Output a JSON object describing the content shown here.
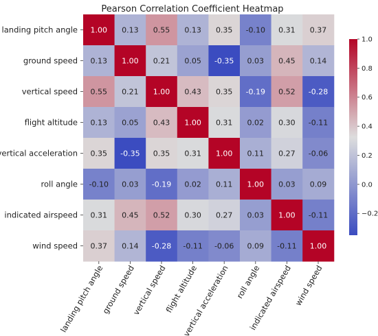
{
  "chart_data": {
    "type": "heatmap",
    "title": "Pearson Correlation Coefficient Heatmap",
    "xlabel": "",
    "ylabel": "",
    "variables": [
      "landing pitch angle",
      "ground speed",
      "vertical speed",
      "flight altitude",
      "vertical acceleration",
      "roll angle",
      "indicated airspeed",
      "wind speed"
    ],
    "matrix": [
      [
        1.0,
        0.13,
        0.55,
        0.13,
        0.35,
        -0.1,
        0.31,
        0.37
      ],
      [
        0.13,
        1.0,
        0.21,
        0.05,
        -0.35,
        0.03,
        0.45,
        0.14
      ],
      [
        0.55,
        0.21,
        1.0,
        0.43,
        0.35,
        -0.19,
        0.52,
        -0.28
      ],
      [
        0.13,
        0.05,
        0.43,
        1.0,
        0.31,
        0.02,
        0.3,
        -0.11
      ],
      [
        0.35,
        -0.35,
        0.35,
        0.31,
        1.0,
        0.11,
        0.27,
        -0.06
      ],
      [
        -0.1,
        0.03,
        -0.19,
        0.02,
        0.11,
        1.0,
        0.03,
        0.09
      ],
      [
        0.31,
        0.45,
        0.52,
        0.3,
        0.27,
        0.03,
        1.0,
        -0.11
      ],
      [
        0.37,
        0.14,
        -0.28,
        -0.11,
        -0.06,
        0.09,
        -0.11,
        1.0
      ]
    ],
    "annotations": true,
    "value_format": "0.00",
    "colormap": "coolwarm",
    "colors": {
      "low": "#3b4cc0",
      "mid": "#dddddd",
      "high": "#b40426"
    },
    "color_range": [
      -0.35,
      1.0
    ],
    "colorbar": {
      "ticks": [
        1.0,
        0.8,
        0.6,
        0.4,
        0.2,
        0.0,
        -0.2
      ],
      "tick_labels": [
        "1.0",
        "0.8",
        "0.6",
        "0.4",
        "0.2",
        "0.0",
        "−0.2"
      ],
      "placement": "right"
    },
    "x_tick_rotation": 60
  }
}
